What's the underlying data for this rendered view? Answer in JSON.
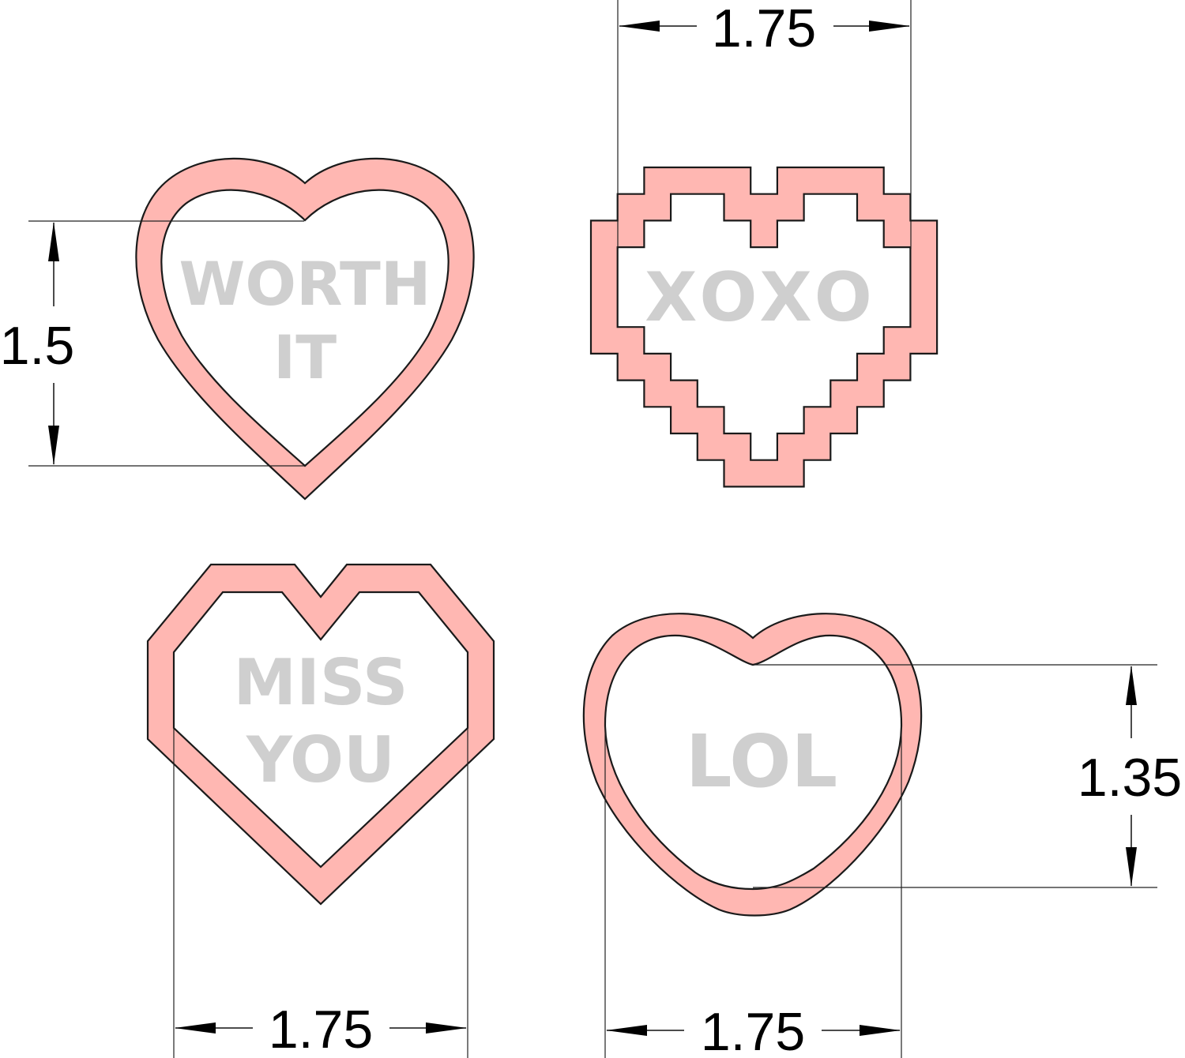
{
  "hearts": [
    {
      "style": "classic",
      "message_lines": [
        "WORTH",
        "IT"
      ]
    },
    {
      "style": "pixel",
      "message_lines": [
        "XOXO"
      ]
    },
    {
      "style": "geometric",
      "message_lines": [
        "MISS",
        "YOU"
      ]
    },
    {
      "style": "rounded",
      "message_lines": [
        "LOL"
      ]
    }
  ],
  "dimensions": {
    "classic_height": "1.5",
    "pixel_width": "1.75",
    "geometric_width": "1.75",
    "rounded_width": "1.75",
    "rounded_height": "1.35"
  },
  "colors": {
    "cutter_fill": "#ffb7b2",
    "message_text": "#cfcfcf",
    "outline": "#1a1a1a"
  }
}
